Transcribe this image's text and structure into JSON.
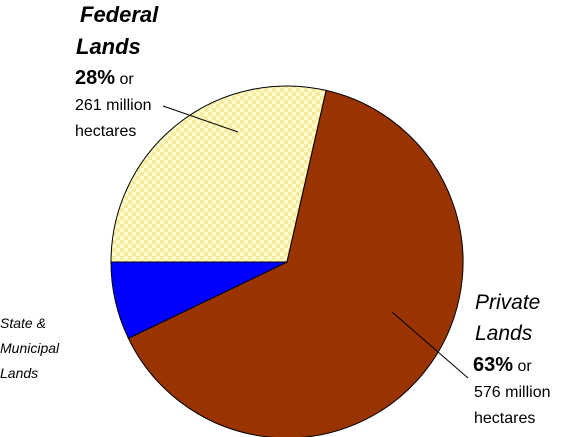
{
  "chart_data": {
    "type": "pie",
    "slices": [
      {
        "name": "Federal Lands",
        "percent": 28,
        "amount": "261 million hectares",
        "color": "#fffbcc"
      },
      {
        "name": "Private Lands",
        "percent": 63,
        "amount": "576 million hectares",
        "color": "#993300"
      },
      {
        "name": "State & Municipal Lands",
        "percent": 7,
        "color": "#0000ff"
      }
    ],
    "legend": "none",
    "labels": {
      "federal": {
        "line1": "Federal",
        "line2": "Lands",
        "pct": "28%",
        "or": " or",
        "amt1": "261 million",
        "amt2": "hectares"
      },
      "private": {
        "line1": "Private",
        "line2": "Lands",
        "pct": "63%",
        "or": " or",
        "amt1": "576 million",
        "amt2": "hectares"
      },
      "state": {
        "line1": "State &",
        "line2": "Municipal",
        "line3": "Lands"
      }
    }
  }
}
